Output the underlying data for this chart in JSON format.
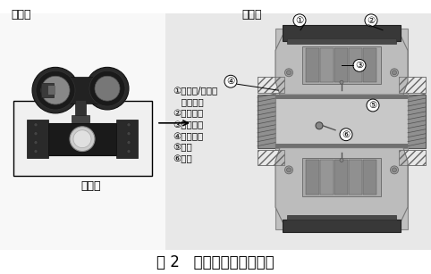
{
  "title": "图 2   电磁流量计主要组件",
  "title_fontsize": 12,
  "bg_color": "#ffffff",
  "left_label_transmitter": "变送器",
  "left_label_sensor": "传感器",
  "right_label_sensor": "传感器",
  "annotations": [
    "①传感器/变送器",
    "   连接接口",
    "②设备密封",
    "③线圈系统",
    "④过程链接",
    "⑤内衬",
    "⑥电极"
  ],
  "annotation_fontsize": 7.5,
  "label_fontsize": 9,
  "gray_bg": "#e0e0e0",
  "outer_shell": "#808080",
  "hatch_color": "#606060",
  "coil_bg": "#a0a0a0",
  "bore_bg": "#c8c8c8",
  "inner_liner": "#d8d8d8",
  "top_cap_dark": "#404040",
  "top_cap_light": "#888888",
  "flange_side_bg": "#b0b0b0",
  "flange_white_insert": "#e8e8e8",
  "body_outline": "#555555",
  "dark_outline": "#2a2a2a"
}
